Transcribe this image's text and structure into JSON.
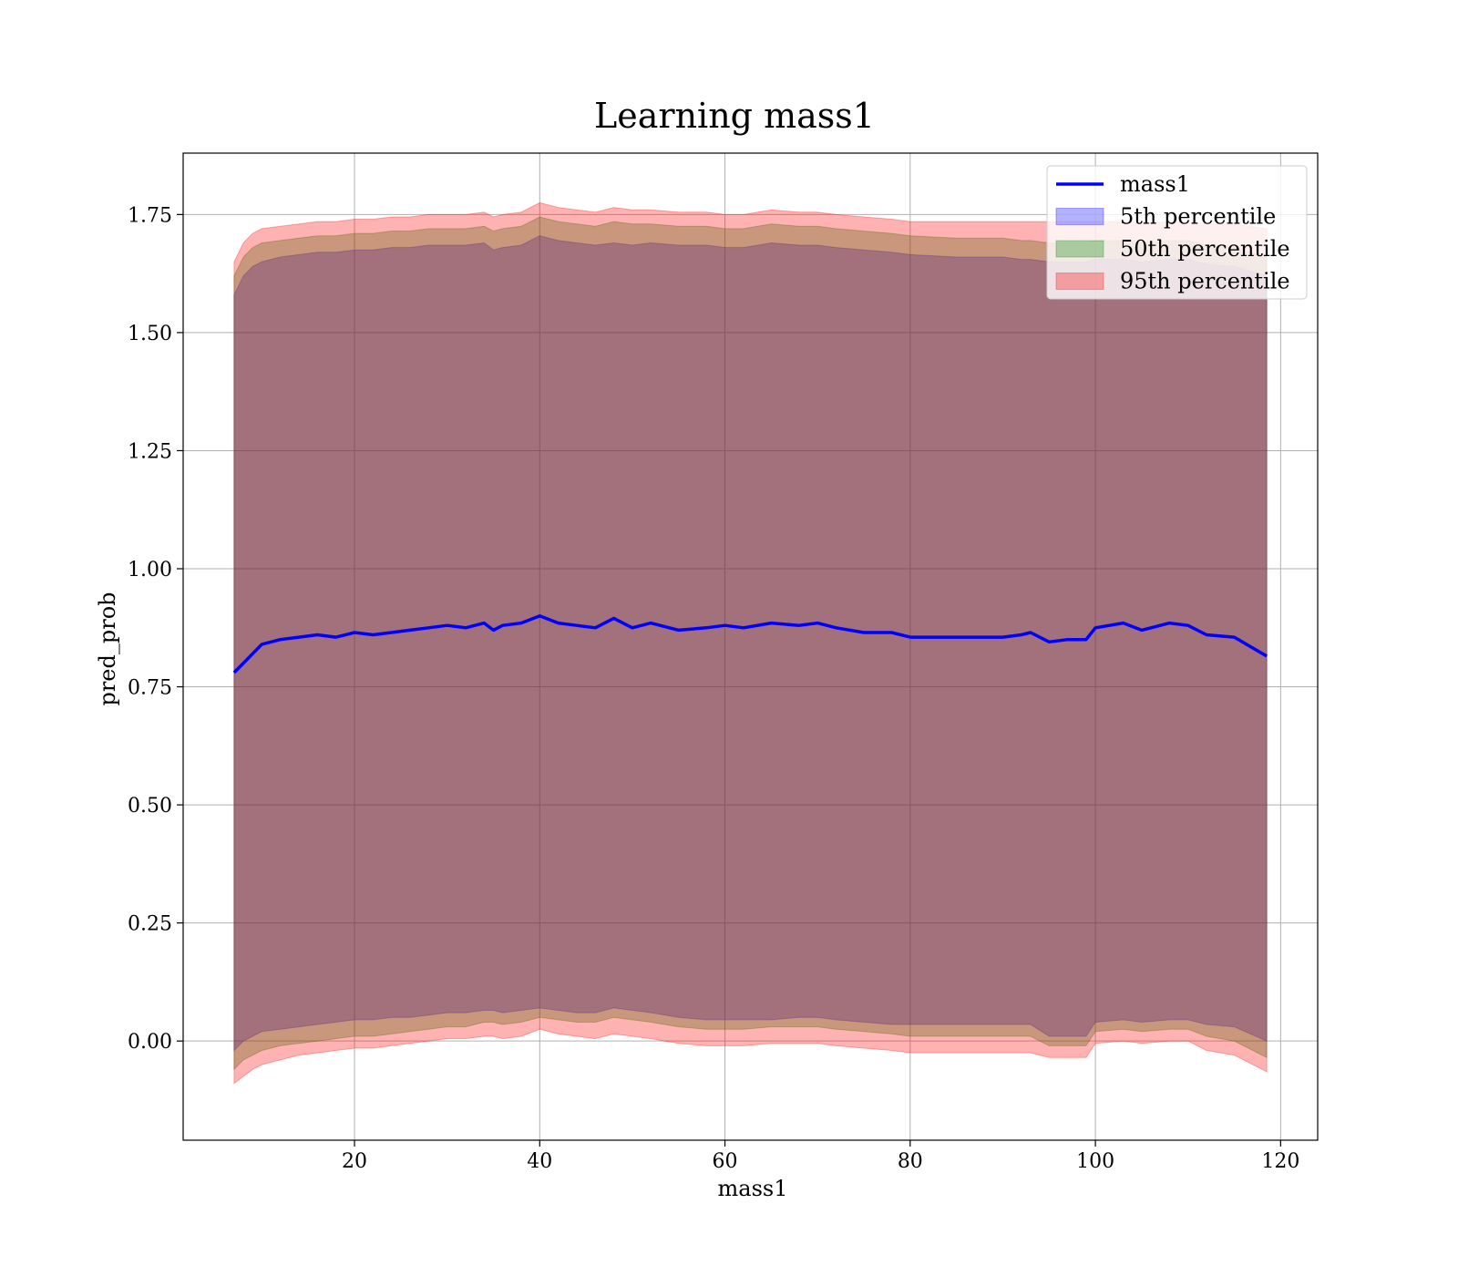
{
  "chart_data": {
    "type": "area",
    "title": "Learning mass1",
    "xlabel": "mass1",
    "ylabel": "pred_prob",
    "xlim": [
      1.5,
      124
    ],
    "ylim": [
      -0.21,
      1.88
    ],
    "x_ticks": [
      20,
      40,
      60,
      80,
      100,
      120
    ],
    "y_ticks": [
      0.0,
      0.25,
      0.5,
      0.75,
      1.0,
      1.25,
      1.5,
      1.75
    ],
    "x_tick_labels": [
      "20",
      "40",
      "60",
      "80",
      "100",
      "120"
    ],
    "y_tick_labels": [
      "0.00",
      "0.25",
      "0.50",
      "0.75",
      "1.00",
      "1.25",
      "1.50",
      "1.75"
    ],
    "grid": true,
    "legend_position": "top-right",
    "x": [
      7,
      8,
      9,
      10,
      12,
      14,
      16,
      18,
      20,
      22,
      24,
      26,
      28,
      30,
      32,
      34,
      35,
      36,
      38,
      40,
      42,
      44,
      46,
      48,
      50,
      52,
      55,
      58,
      60,
      62,
      65,
      68,
      70,
      72,
      75,
      78,
      80,
      85,
      88,
      90,
      92,
      93,
      95,
      97,
      99,
      100,
      103,
      105,
      108,
      110,
      112,
      115,
      118.5
    ],
    "series": [
      {
        "name": "mass1",
        "kind": "line",
        "color": "#0000ff",
        "values": [
          0.78,
          0.8,
          0.82,
          0.84,
          0.85,
          0.855,
          0.86,
          0.855,
          0.865,
          0.86,
          0.865,
          0.87,
          0.875,
          0.88,
          0.875,
          0.885,
          0.87,
          0.88,
          0.885,
          0.9,
          0.885,
          0.88,
          0.875,
          0.895,
          0.875,
          0.885,
          0.87,
          0.875,
          0.88,
          0.875,
          0.885,
          0.88,
          0.885,
          0.875,
          0.865,
          0.865,
          0.855,
          0.855,
          0.855,
          0.855,
          0.86,
          0.865,
          0.845,
          0.85,
          0.85,
          0.875,
          0.885,
          0.87,
          0.885,
          0.88,
          0.86,
          0.855,
          0.815
        ]
      },
      {
        "name": "5th percentile",
        "kind": "band",
        "color": "#0000ff",
        "lower": [
          -0.02,
          0.0,
          0.01,
          0.02,
          0.025,
          0.03,
          0.035,
          0.04,
          0.045,
          0.045,
          0.05,
          0.05,
          0.055,
          0.06,
          0.06,
          0.065,
          0.065,
          0.06,
          0.065,
          0.07,
          0.065,
          0.06,
          0.06,
          0.07,
          0.065,
          0.06,
          0.05,
          0.045,
          0.045,
          0.045,
          0.045,
          0.05,
          0.05,
          0.045,
          0.04,
          0.035,
          0.035,
          0.035,
          0.035,
          0.035,
          0.035,
          0.035,
          0.01,
          0.01,
          0.01,
          0.04,
          0.045,
          0.04,
          0.045,
          0.045,
          0.035,
          0.03,
          0.0
        ],
        "upper": [
          1.58,
          1.62,
          1.64,
          1.65,
          1.66,
          1.665,
          1.67,
          1.67,
          1.675,
          1.675,
          1.68,
          1.68,
          1.685,
          1.685,
          1.685,
          1.69,
          1.675,
          1.68,
          1.685,
          1.705,
          1.695,
          1.69,
          1.685,
          1.69,
          1.685,
          1.69,
          1.685,
          1.685,
          1.68,
          1.68,
          1.69,
          1.685,
          1.685,
          1.68,
          1.675,
          1.67,
          1.665,
          1.66,
          1.66,
          1.66,
          1.655,
          1.655,
          1.65,
          1.65,
          1.65,
          1.655,
          1.655,
          1.65,
          1.655,
          1.655,
          1.645,
          1.64,
          1.62
        ]
      },
      {
        "name": "50th percentile",
        "kind": "band",
        "color": "#008000",
        "lower": [
          -0.06,
          -0.04,
          -0.03,
          -0.02,
          -0.01,
          -0.005,
          0.0,
          0.005,
          0.01,
          0.01,
          0.015,
          0.02,
          0.025,
          0.03,
          0.03,
          0.04,
          0.04,
          0.035,
          0.04,
          0.05,
          0.045,
          0.04,
          0.04,
          0.05,
          0.045,
          0.04,
          0.03,
          0.025,
          0.025,
          0.025,
          0.03,
          0.03,
          0.03,
          0.025,
          0.02,
          0.015,
          0.01,
          0.01,
          0.01,
          0.01,
          0.01,
          0.01,
          -0.01,
          -0.01,
          -0.01,
          0.02,
          0.025,
          0.02,
          0.025,
          0.025,
          0.01,
          0.0,
          -0.035
        ],
        "upper": [
          1.62,
          1.66,
          1.68,
          1.69,
          1.695,
          1.7,
          1.705,
          1.705,
          1.71,
          1.71,
          1.715,
          1.715,
          1.72,
          1.72,
          1.72,
          1.725,
          1.715,
          1.72,
          1.725,
          1.745,
          1.735,
          1.73,
          1.725,
          1.735,
          1.73,
          1.73,
          1.725,
          1.725,
          1.72,
          1.72,
          1.73,
          1.725,
          1.725,
          1.72,
          1.715,
          1.71,
          1.705,
          1.7,
          1.7,
          1.7,
          1.695,
          1.695,
          1.69,
          1.69,
          1.69,
          1.695,
          1.695,
          1.69,
          1.695,
          1.695,
          1.685,
          1.68,
          1.66
        ]
      },
      {
        "name": "95th percentile",
        "kind": "band",
        "color": "#ff0000",
        "lower": [
          -0.09,
          -0.075,
          -0.06,
          -0.05,
          -0.04,
          -0.03,
          -0.025,
          -0.02,
          -0.015,
          -0.015,
          -0.01,
          -0.005,
          0.0,
          0.005,
          0.005,
          0.01,
          0.01,
          0.005,
          0.01,
          0.025,
          0.015,
          0.01,
          0.005,
          0.015,
          0.01,
          0.005,
          -0.005,
          -0.01,
          -0.01,
          -0.01,
          -0.005,
          -0.005,
          -0.005,
          -0.01,
          -0.015,
          -0.02,
          -0.025,
          -0.025,
          -0.025,
          -0.025,
          -0.025,
          -0.025,
          -0.035,
          -0.035,
          -0.035,
          -0.005,
          0.0,
          -0.005,
          0.0,
          0.0,
          -0.02,
          -0.03,
          -0.065
        ],
        "upper": [
          1.65,
          1.69,
          1.71,
          1.72,
          1.725,
          1.73,
          1.735,
          1.735,
          1.74,
          1.74,
          1.745,
          1.745,
          1.75,
          1.75,
          1.75,
          1.755,
          1.745,
          1.75,
          1.755,
          1.775,
          1.765,
          1.76,
          1.755,
          1.765,
          1.76,
          1.76,
          1.755,
          1.755,
          1.75,
          1.75,
          1.76,
          1.755,
          1.755,
          1.75,
          1.745,
          1.74,
          1.735,
          1.735,
          1.735,
          1.735,
          1.735,
          1.735,
          1.735,
          1.735,
          1.735,
          1.735,
          1.735,
          1.73,
          1.735,
          1.735,
          1.73,
          1.73,
          1.72
        ]
      }
    ]
  }
}
